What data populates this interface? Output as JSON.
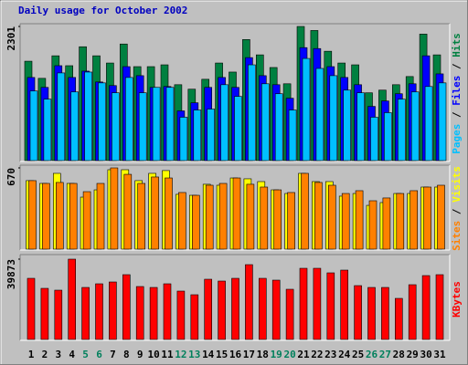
{
  "title": "Daily usage for October 2002",
  "legend_separator": "/",
  "chart_data": [
    {
      "type": "bar",
      "ylim": [
        0,
        2301
      ],
      "yticks": [
        2301
      ],
      "series": [
        {
          "name": "Hits",
          "color": "#008040",
          "values": [
            1705,
            1411,
            1798,
            1628,
            1953,
            1798,
            1674,
            2000,
            1612,
            1612,
            1643,
            1302,
            1225,
            1395,
            1674,
            1519,
            2077,
            1814,
            1597,
            1318,
            2301,
            2232,
            1876,
            1674,
            1643,
            1163,
            1209,
            1302,
            1442,
            2170,
            1814
          ]
        },
        {
          "name": "Files",
          "color": "#0000ff",
          "values": [
            1426,
            1256,
            1628,
            1426,
            1535,
            1349,
            1287,
            1612,
            1457,
            1256,
            1271,
            853,
            992,
            1256,
            1426,
            1256,
            1767,
            1457,
            1302,
            1070,
            1938,
            1922,
            1612,
            1426,
            1302,
            930,
            1023,
            1147,
            1318,
            1798,
            1488
          ]
        },
        {
          "name": "Pages",
          "color": "#00c0ff",
          "values": [
            1194,
            1054,
            1504,
            1178,
            1519,
            1333,
            1163,
            1426,
            1163,
            1256,
            1256,
            744,
            868,
            884,
            1302,
            1101,
            1643,
            1318,
            1147,
            868,
            1752,
            1581,
            1457,
            1209,
            1163,
            744,
            822,
            1054,
            1178,
            1271,
            1333
          ]
        }
      ]
    },
    {
      "type": "bar",
      "ylim": [
        0,
        670
      ],
      "yticks": [
        670
      ],
      "series": [
        {
          "name": "Visits",
          "color": "#ffff00",
          "values": [
            565,
            542,
            625,
            542,
            429,
            489,
            655,
            655,
            565,
            625,
            648,
            452,
            444,
            535,
            527,
            587,
            580,
            557,
            489,
            459,
            625,
            557,
            557,
            437,
            459,
            361,
            384,
            459,
            459,
            512,
            512
          ]
        },
        {
          "name": "Sites",
          "color": "#ff8000",
          "values": [
            565,
            542,
            550,
            542,
            474,
            542,
            670,
            617,
            542,
            595,
            587,
            467,
            444,
            527,
            542,
            587,
            535,
            512,
            489,
            467,
            625,
            550,
            527,
            459,
            482,
            399,
            422,
            459,
            482,
            512,
            527
          ]
        }
      ]
    },
    {
      "type": "bar",
      "ylim": [
        0,
        39873
      ],
      "yticks": [
        39873
      ],
      "categories": [
        "1",
        "2",
        "3",
        "4",
        "5",
        "6",
        "7",
        "8",
        "9",
        "10",
        "11",
        "12",
        "13",
        "14",
        "15",
        "16",
        "17",
        "18",
        "19",
        "20",
        "21",
        "22",
        "23",
        "24",
        "25",
        "26",
        "27",
        "28",
        "29",
        "30",
        "31"
      ],
      "category_colors": [
        "#000000",
        "#000000",
        "#000000",
        "#000000",
        "#00805c",
        "#00805c",
        "#000000",
        "#000000",
        "#000000",
        "#000000",
        "#000000",
        "#00805c",
        "#00805c",
        "#000000",
        "#000000",
        "#000000",
        "#000000",
        "#000000",
        "#00805c",
        "#00805c",
        "#000000",
        "#000000",
        "#000000",
        "#000000",
        "#000000",
        "#00805c",
        "#00805c",
        "#000000",
        "#000000",
        "#000000",
        "#000000"
      ],
      "series": [
        {
          "name": "KBytes",
          "color": "#ff0000",
          "values": [
            30351,
            25368,
            24462,
            39873,
            25821,
            27633,
            28539,
            32163,
            26274,
            25821,
            27633,
            24009,
            22197,
            29898,
            28992,
            30351,
            37146,
            30351,
            29445,
            24915,
            35334,
            35334,
            33069,
            34428,
            26727,
            25821,
            25821,
            20385,
            27180,
            31710,
            32163
          ]
        }
      ]
    }
  ]
}
